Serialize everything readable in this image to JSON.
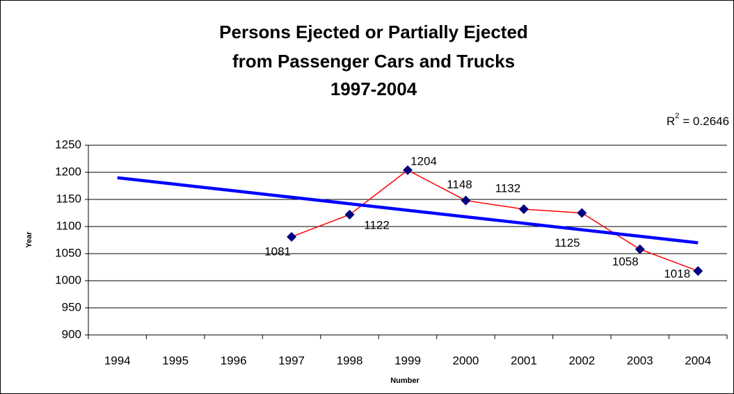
{
  "chart_data": {
    "type": "line",
    "title": [
      "Persons Ejected or Partially Ejected",
      "from Passenger Cars and Trucks",
      "1997-2004"
    ],
    "x_label": "Number",
    "y_label": "Year",
    "annotation": {
      "symbol": "R",
      "exponent": "2",
      "text": "= 0.2646"
    },
    "categories": [
      "1994",
      "1995",
      "1996",
      "1997",
      "1998",
      "1999",
      "2000",
      "2001",
      "2002",
      "2003",
      "2004"
    ],
    "series": [
      {
        "color": "#ff0000",
        "marker_color": "#000080",
        "values": [
          null,
          null,
          null,
          1081,
          1122,
          1204,
          1148,
          1132,
          1125,
          1058,
          1018
        ]
      },
      {
        "color": "#0000ff",
        "values": [
          1190,
          1178,
          1166,
          1154,
          1142,
          1130,
          1118,
          1106,
          1094,
          1082,
          1070
        ]
      }
    ],
    "ylim": [
      900,
      1250
    ],
    "yticks": [
      900,
      950,
      1000,
      1050,
      1100,
      1150,
      1200,
      1250
    ],
    "grid": true
  }
}
